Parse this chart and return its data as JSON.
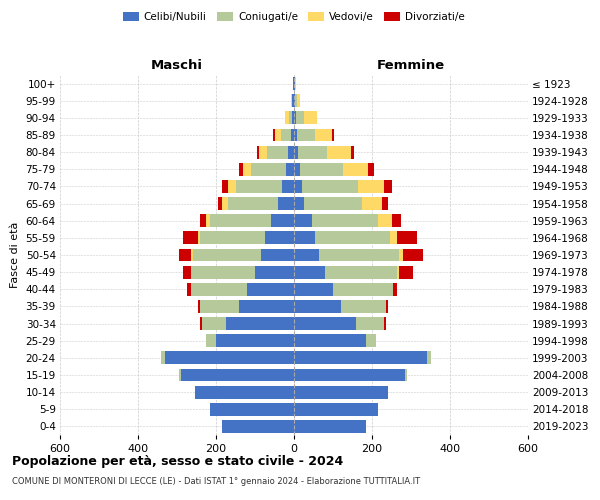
{
  "age_groups": [
    "0-4",
    "5-9",
    "10-14",
    "15-19",
    "20-24",
    "25-29",
    "30-34",
    "35-39",
    "40-44",
    "45-49",
    "50-54",
    "55-59",
    "60-64",
    "65-69",
    "70-74",
    "75-79",
    "80-84",
    "85-89",
    "90-94",
    "95-99",
    "100+"
  ],
  "birth_years": [
    "2019-2023",
    "2014-2018",
    "2009-2013",
    "2004-2008",
    "1999-2003",
    "1994-1998",
    "1989-1993",
    "1984-1988",
    "1979-1983",
    "1974-1978",
    "1969-1973",
    "1964-1968",
    "1959-1963",
    "1954-1958",
    "1949-1953",
    "1944-1948",
    "1939-1943",
    "1934-1938",
    "1929-1933",
    "1924-1928",
    "≤ 1923"
  ],
  "colors": {
    "celibi": "#4472c4",
    "coniugati": "#b5c99a",
    "vedovi": "#ffd966",
    "divorziati": "#cc0000"
  },
  "maschi": {
    "celibi": [
      185,
      215,
      255,
      290,
      330,
      200,
      175,
      140,
      120,
      100,
      85,
      75,
      60,
      40,
      30,
      20,
      15,
      8,
      5,
      4,
      2
    ],
    "coniugati": [
      0,
      0,
      0,
      5,
      10,
      25,
      60,
      100,
      145,
      165,
      175,
      165,
      155,
      130,
      120,
      90,
      55,
      25,
      8,
      2,
      0
    ],
    "vedovi": [
      0,
      0,
      0,
      0,
      0,
      0,
      0,
      0,
      0,
      0,
      5,
      5,
      10,
      15,
      20,
      20,
      20,
      15,
      10,
      2,
      0
    ],
    "divorziati": [
      0,
      0,
      0,
      0,
      0,
      0,
      5,
      5,
      10,
      20,
      30,
      40,
      15,
      10,
      15,
      10,
      5,
      5,
      0,
      0,
      0
    ]
  },
  "femmine": {
    "celibi": [
      185,
      215,
      240,
      285,
      340,
      185,
      160,
      120,
      100,
      80,
      65,
      55,
      45,
      25,
      20,
      15,
      10,
      8,
      5,
      3,
      2
    ],
    "coniugati": [
      0,
      0,
      0,
      5,
      10,
      25,
      70,
      115,
      155,
      185,
      205,
      190,
      170,
      150,
      145,
      110,
      75,
      45,
      20,
      4,
      0
    ],
    "vedovi": [
      0,
      0,
      0,
      0,
      0,
      0,
      0,
      0,
      0,
      5,
      10,
      20,
      35,
      50,
      65,
      65,
      60,
      45,
      35,
      8,
      2
    ],
    "divorziati": [
      0,
      0,
      0,
      0,
      0,
      0,
      5,
      5,
      10,
      35,
      50,
      50,
      25,
      15,
      20,
      15,
      10,
      5,
      0,
      0,
      0
    ]
  },
  "title": "Popolazione per età, sesso e stato civile - 2024",
  "subtitle": "COMUNE DI MONTERONI DI LECCE (LE) - Dati ISTAT 1° gennaio 2024 - Elaborazione TUTTITALIA.IT",
  "xlabel_maschi": "Maschi",
  "xlabel_femmine": "Femmine",
  "ylabel": "Fasce di età",
  "xlim": 600,
  "legend_labels": [
    "Celibi/Nubili",
    "Coniugati/e",
    "Vedovi/e",
    "Divorziati/e"
  ],
  "bg_color": "#ffffff",
  "grid_color": "#cccccc",
  "bar_height": 0.75
}
